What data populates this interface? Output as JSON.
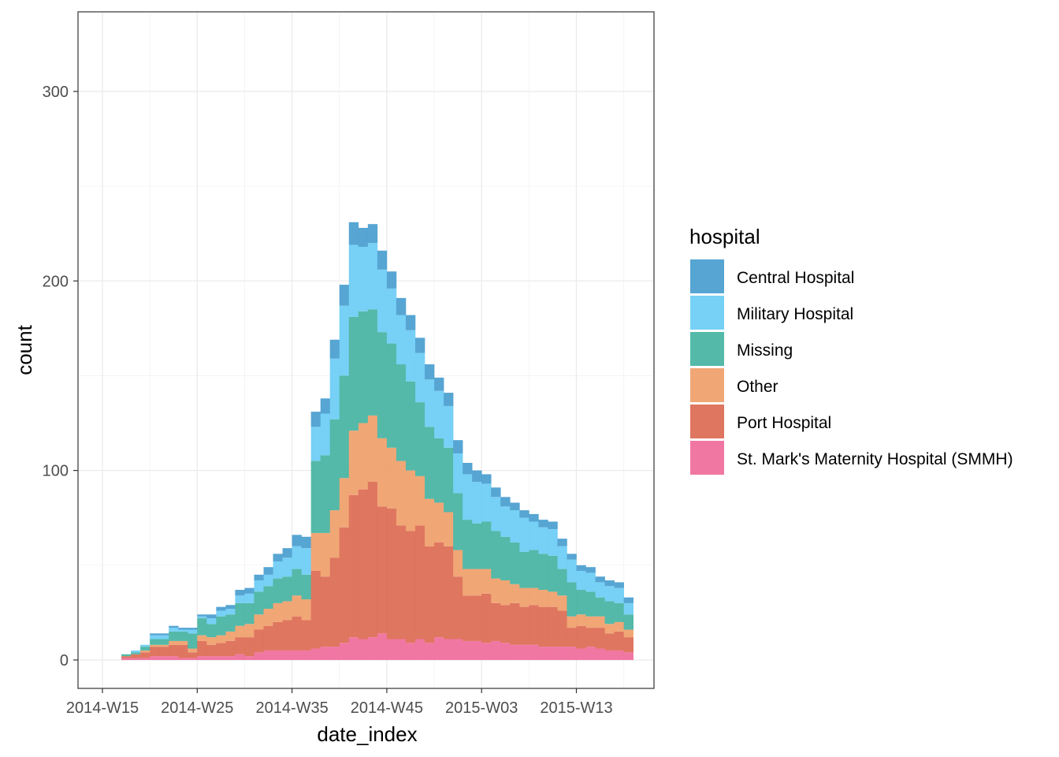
{
  "chart_data": {
    "type": "bar",
    "stacked": true,
    "xlabel": "date_index",
    "ylabel": "count",
    "y_ticks": [
      0,
      100,
      200,
      300
    ],
    "ylim": [
      -15,
      342
    ],
    "x_ticks": [
      "2014-W15",
      "2014-W25",
      "2014-W35",
      "2014-W45",
      "2015-W03",
      "2015-W13"
    ],
    "x_tick_index": [
      0,
      10,
      20,
      30,
      40,
      50
    ],
    "x_start": "2014-W15",
    "weeks": 56,
    "grid": true,
    "legend_position": "right",
    "legend_title": "hospital",
    "stack_order": [
      "St. Mark's Maternity Hospital (SMMH)",
      "Port Hospital",
      "Other",
      "Missing",
      "Military Hospital",
      "Central Hospital"
    ],
    "series": [
      {
        "name": "Central Hospital",
        "color": "#4DA0D1",
        "values": [
          0,
          0,
          0,
          0,
          0,
          1,
          1,
          1,
          1,
          1,
          1,
          2,
          2,
          2,
          3,
          3,
          3,
          4,
          4,
          5,
          6,
          6,
          8,
          8,
          10,
          11,
          12,
          10,
          10,
          10,
          9,
          9,
          8,
          8,
          8,
          7,
          7,
          7,
          6,
          6,
          5,
          5,
          5,
          4,
          4,
          4,
          4,
          4,
          4,
          3,
          3,
          3,
          3,
          3,
          3,
          3
        ]
      },
      {
        "name": "Military Hospital",
        "color": "#70CDF4",
        "values": [
          0,
          0,
          0,
          1,
          1,
          2,
          2,
          2,
          1,
          2,
          1,
          3,
          3,
          3,
          4,
          5,
          6,
          6,
          9,
          10,
          12,
          14,
          18,
          22,
          32,
          37,
          38,
          34,
          35,
          33,
          29,
          26,
          27,
          26,
          25,
          25,
          22,
          21,
          24,
          22,
          20,
          18,
          16,
          17,
          18,
          15,
          14,
          14,
          12,
          12,
          10,
          10,
          8,
          8,
          8,
          6
        ]
      },
      {
        "name": "Missing",
        "color": "#4BB5A3",
        "values": [
          0,
          0,
          1,
          1,
          2,
          3,
          3,
          5,
          5,
          8,
          9,
          7,
          10,
          9,
          12,
          11,
          12,
          12,
          13,
          13,
          14,
          13,
          38,
          41,
          48,
          54,
          60,
          59,
          56,
          56,
          55,
          51,
          47,
          39,
          38,
          34,
          34,
          30,
          26,
          24,
          25,
          25,
          23,
          22,
          19,
          20,
          19,
          19,
          14,
          18,
          13,
          13,
          10,
          12,
          10,
          8
        ]
      },
      {
        "name": "Other",
        "color": "#F0A16F",
        "values": [
          0,
          0,
          0,
          0,
          1,
          1,
          1,
          2,
          2,
          2,
          3,
          4,
          4,
          5,
          6,
          7,
          8,
          9,
          10,
          10,
          11,
          11,
          20,
          23,
          25,
          26,
          34,
          35,
          35,
          36,
          32,
          34,
          32,
          26,
          25,
          21,
          18,
          14,
          14,
          14,
          13,
          13,
          13,
          10,
          10,
          9,
          9,
          8,
          8,
          6,
          6,
          6,
          6,
          5,
          5,
          4
        ]
      },
      {
        "name": "Port Hospital",
        "color": "#DD6F57",
        "values": [
          0,
          0,
          1,
          2,
          3,
          5,
          5,
          6,
          7,
          3,
          8,
          6,
          7,
          8,
          9,
          10,
          12,
          13,
          15,
          16,
          18,
          16,
          41,
          37,
          47,
          61,
          75,
          79,
          82,
          67,
          69,
          60,
          59,
          60,
          51,
          50,
          49,
          33,
          24,
          24,
          26,
          20,
          20,
          22,
          20,
          21,
          21,
          21,
          19,
          10,
          12,
          10,
          11,
          9,
          10,
          8
        ]
      },
      {
        "name": "St. Mark's Maternity Hospital (SMMH)",
        "color": "#F0709E",
        "values": [
          0,
          0,
          1,
          1,
          1,
          2,
          2,
          2,
          1,
          1,
          2,
          2,
          2,
          2,
          3,
          2,
          4,
          5,
          5,
          5,
          5,
          5,
          6,
          7,
          7,
          9,
          12,
          11,
          12,
          14,
          11,
          11,
          9,
          11,
          9,
          12,
          11,
          11,
          10,
          10,
          9,
          10,
          9,
          8,
          8,
          8,
          7,
          7,
          7,
          7,
          6,
          7,
          6,
          5,
          5,
          4
        ]
      }
    ]
  }
}
